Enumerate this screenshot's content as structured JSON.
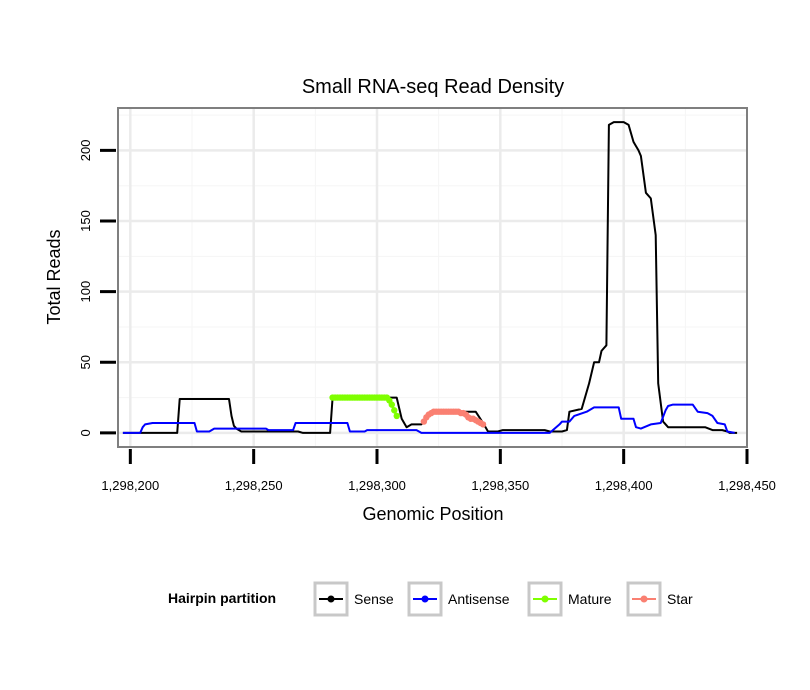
{
  "chart_data": {
    "type": "line",
    "title": "Small RNA-seq Read Density",
    "xlabel": "Genomic Position",
    "ylabel": "Total Reads",
    "xlim": [
      1298195,
      1298450
    ],
    "ylim": [
      -10,
      230
    ],
    "x_ticks": [
      1298200,
      1298250,
      1298300,
      1298350,
      1298400,
      1298450
    ],
    "x_tick_labels": [
      "1,298,200",
      "1,298,250",
      "1,298,300",
      "1,298,350",
      "1,298,400",
      "1,298,450"
    ],
    "y_ticks": [
      0,
      50,
      100,
      150,
      200
    ],
    "y_tick_labels": [
      "0",
      "50",
      "100",
      "150",
      "200"
    ],
    "grid": true,
    "legend": {
      "title": "Hairpin partition",
      "position": "bottom",
      "entries": [
        "Sense",
        "Antisense",
        "Mature",
        "Star"
      ]
    },
    "series": [
      {
        "name": "Sense",
        "color": "#000000",
        "marker": "none",
        "points": [
          [
            1298197,
            0
          ],
          [
            1298219,
            0
          ],
          [
            1298220,
            24
          ],
          [
            1298240,
            24
          ],
          [
            1298241,
            12
          ],
          [
            1298242,
            5
          ],
          [
            1298243,
            3
          ],
          [
            1298245,
            1
          ],
          [
            1298268,
            1
          ],
          [
            1298270,
            0
          ],
          [
            1298281,
            0
          ],
          [
            1298282,
            25
          ],
          [
            1298308,
            25
          ],
          [
            1298310,
            10
          ],
          [
            1298312,
            4
          ],
          [
            1298314,
            6
          ],
          [
            1298318,
            6
          ],
          [
            1298320,
            10
          ],
          [
            1298322,
            15
          ],
          [
            1298340,
            15
          ],
          [
            1298343,
            7
          ],
          [
            1298345,
            1
          ],
          [
            1298349,
            1
          ],
          [
            1298351,
            2
          ],
          [
            1298368,
            2
          ],
          [
            1298370,
            1
          ],
          [
            1298375,
            1
          ],
          [
            1298377,
            2
          ],
          [
            1298378,
            15
          ],
          [
            1298383,
            17
          ],
          [
            1298386,
            35
          ],
          [
            1298388,
            50
          ],
          [
            1298390,
            50
          ],
          [
            1298391,
            58
          ],
          [
            1298393,
            62
          ],
          [
            1298394,
            218
          ],
          [
            1298396,
            220
          ],
          [
            1298400,
            220
          ],
          [
            1298402,
            218
          ],
          [
            1298404,
            206
          ],
          [
            1298406,
            200
          ],
          [
            1298407,
            196
          ],
          [
            1298409,
            170
          ],
          [
            1298411,
            166
          ],
          [
            1298413,
            140
          ],
          [
            1298414,
            35
          ],
          [
            1298416,
            8
          ],
          [
            1298418,
            4
          ],
          [
            1298433,
            4
          ],
          [
            1298436,
            2
          ],
          [
            1298440,
            2
          ],
          [
            1298442,
            1
          ],
          [
            1298443,
            0
          ],
          [
            1298446,
            0
          ]
        ]
      },
      {
        "name": "Antisense",
        "color": "#0000ff",
        "marker": "none",
        "points": [
          [
            1298197,
            0
          ],
          [
            1298204,
            0
          ],
          [
            1298205,
            4
          ],
          [
            1298206,
            6
          ],
          [
            1298209,
            7
          ],
          [
            1298226,
            7
          ],
          [
            1298227,
            1
          ],
          [
            1298232,
            1
          ],
          [
            1298234,
            3
          ],
          [
            1298255,
            3
          ],
          [
            1298256,
            2
          ],
          [
            1298266,
            2
          ],
          [
            1298267,
            7
          ],
          [
            1298288,
            7
          ],
          [
            1298289,
            1
          ],
          [
            1298295,
            1
          ],
          [
            1298296,
            2
          ],
          [
            1298316,
            2
          ],
          [
            1298318,
            0
          ],
          [
            1298370,
            0
          ],
          [
            1298372,
            3
          ],
          [
            1298374,
            6
          ],
          [
            1298375,
            8
          ],
          [
            1298378,
            8
          ],
          [
            1298380,
            12
          ],
          [
            1298385,
            15
          ],
          [
            1298388,
            18
          ],
          [
            1298398,
            18
          ],
          [
            1298399,
            10
          ],
          [
            1298404,
            10
          ],
          [
            1298405,
            4
          ],
          [
            1298407,
            3
          ],
          [
            1298411,
            6
          ],
          [
            1298415,
            7
          ],
          [
            1298417,
            16
          ],
          [
            1298418,
            19
          ],
          [
            1298420,
            20
          ],
          [
            1298428,
            20
          ],
          [
            1298430,
            15
          ],
          [
            1298434,
            14
          ],
          [
            1298436,
            12
          ],
          [
            1298438,
            7
          ],
          [
            1298441,
            6
          ],
          [
            1298442,
            1
          ],
          [
            1298445,
            0
          ]
        ]
      },
      {
        "name": "Mature",
        "color": "#7fff00",
        "marker": "point",
        "points": [
          [
            1298282,
            25
          ],
          [
            1298283,
            25
          ],
          [
            1298284,
            25
          ],
          [
            1298285,
            25
          ],
          [
            1298286,
            25
          ],
          [
            1298287,
            25
          ],
          [
            1298288,
            25
          ],
          [
            1298289,
            25
          ],
          [
            1298290,
            25
          ],
          [
            1298291,
            25
          ],
          [
            1298292,
            25
          ],
          [
            1298293,
            25
          ],
          [
            1298294,
            25
          ],
          [
            1298295,
            25
          ],
          [
            1298296,
            25
          ],
          [
            1298297,
            25
          ],
          [
            1298298,
            25
          ],
          [
            1298299,
            25
          ],
          [
            1298300,
            25
          ],
          [
            1298301,
            25
          ],
          [
            1298302,
            25
          ],
          [
            1298303,
            25
          ],
          [
            1298304,
            25
          ],
          [
            1298305,
            23
          ],
          [
            1298306,
            20
          ],
          [
            1298307,
            16
          ],
          [
            1298308,
            12
          ]
        ]
      },
      {
        "name": "Star",
        "color": "#fa8072",
        "marker": "point",
        "points": [
          [
            1298319,
            8
          ],
          [
            1298320,
            11
          ],
          [
            1298321,
            13
          ],
          [
            1298322,
            14
          ],
          [
            1298323,
            15
          ],
          [
            1298324,
            15
          ],
          [
            1298325,
            15
          ],
          [
            1298326,
            15
          ],
          [
            1298327,
            15
          ],
          [
            1298328,
            15
          ],
          [
            1298329,
            15
          ],
          [
            1298330,
            15
          ],
          [
            1298331,
            15
          ],
          [
            1298332,
            15
          ],
          [
            1298333,
            15
          ],
          [
            1298334,
            14
          ],
          [
            1298335,
            14
          ],
          [
            1298336,
            13
          ],
          [
            1298337,
            11
          ],
          [
            1298338,
            10
          ],
          [
            1298339,
            10
          ],
          [
            1298340,
            9
          ],
          [
            1298341,
            8
          ],
          [
            1298342,
            7
          ],
          [
            1298343,
            6
          ]
        ]
      }
    ]
  }
}
